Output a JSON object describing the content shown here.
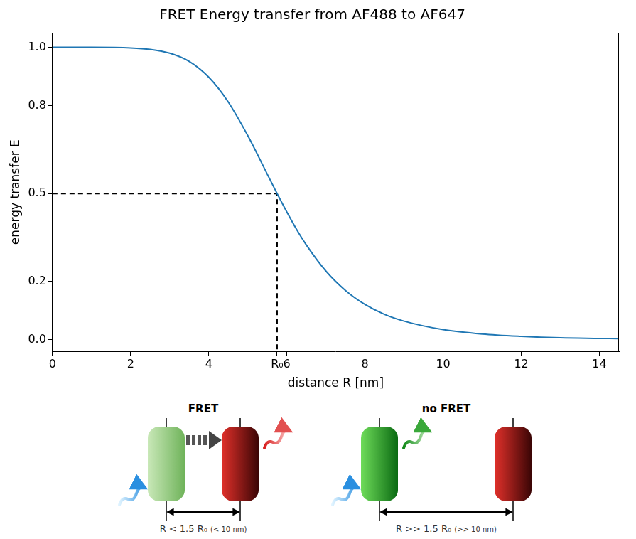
{
  "chart_data": {
    "type": "line",
    "title": "FRET Energy transfer from AF488 to AF647",
    "x_label": "distance R [nm]",
    "y_label": "energy transfer E",
    "x": [
      0,
      1,
      2,
      2.5,
      3,
      3.5,
      4,
      4.5,
      5,
      5.25,
      5.5,
      5.75,
      6,
      6.25,
      6.5,
      7,
      7.5,
      8,
      8.5,
      9,
      10,
      11,
      12,
      13,
      14,
      14.5
    ],
    "values": [
      1.0,
      1.0,
      0.998,
      0.993,
      0.98,
      0.952,
      0.898,
      0.813,
      0.698,
      0.633,
      0.566,
      0.5,
      0.437,
      0.377,
      0.324,
      0.235,
      0.169,
      0.121,
      0.087,
      0.064,
      0.035,
      0.02,
      0.012,
      0.007,
      0.005,
      0.004
    ],
    "color": "#1f77b4",
    "line_style": "solid",
    "xlim": [
      0,
      14.5
    ],
    "xticks": [
      0,
      2,
      4,
      {
        "value": 5.75,
        "label": "R₀"
      },
      6,
      8,
      10,
      12,
      14
    ],
    "ylim": [
      -0.04,
      1.05
    ],
    "yticks": [
      {
        "value": 0,
        "label": "0.0"
      },
      {
        "value": 0.2,
        "label": "0.2"
      },
      {
        "value": 0.5,
        "label": "0.5"
      },
      {
        "value": 0.8,
        "label": "0.8"
      },
      {
        "value": 1,
        "label": "1.0"
      }
    ],
    "grid": false,
    "annotations": [
      {
        "x": 5.75,
        "y": 0.5,
        "line_style": "dashed",
        "color": "#000000"
      }
    ]
  },
  "diagram": {
    "left": {
      "title": "FRET",
      "distance_label": "R < 1.5 R₀",
      "distance_note": "(< 10 nm)"
    },
    "right": {
      "title": "no FRET",
      "distance_label": "R >> 1.5 R₀",
      "distance_note": "(>> 10 nm)"
    }
  }
}
